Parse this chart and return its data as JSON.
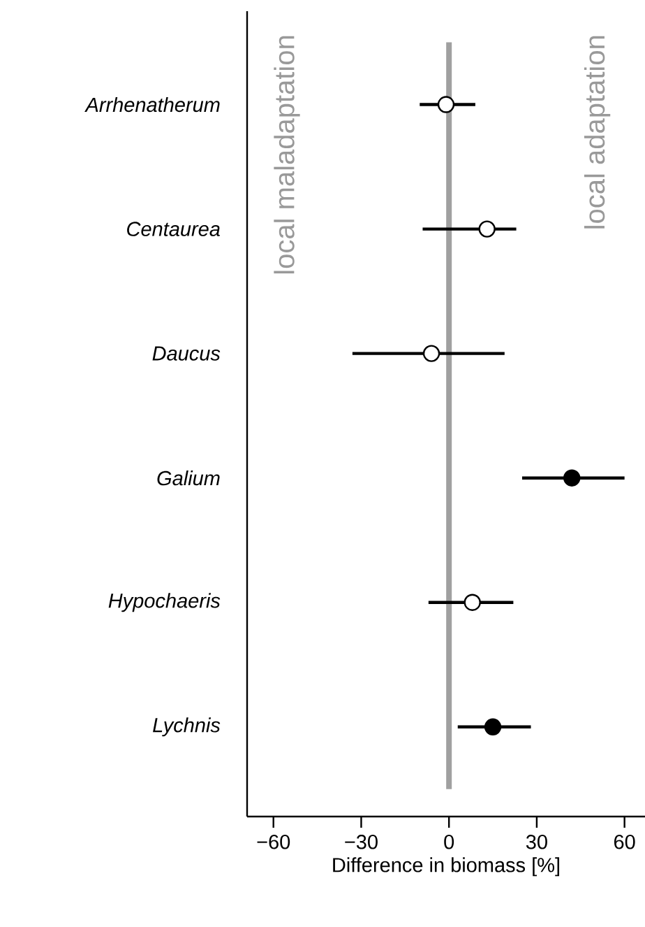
{
  "chart_data": {
    "type": "scatter",
    "orientation": "horizontal",
    "xlabel": "Difference in biomass [%]",
    "categories": [
      "Arrhenatherum",
      "Centaurea",
      "Daucus",
      "Galium",
      "Hypochaeris",
      "Lychnis"
    ],
    "series": [
      {
        "color": "#ffffff",
        "values": [
          -1,
          13,
          -6,
          null,
          8,
          null
        ],
        "errors": [
          [
            -10,
            9
          ],
          [
            -9,
            23
          ],
          [
            -33,
            19
          ],
          null,
          [
            -7,
            22
          ],
          null
        ]
      },
      {
        "color": "#000000",
        "values": [
          null,
          null,
          null,
          42,
          null,
          15
        ],
        "errors": [
          null,
          null,
          null,
          [
            25,
            60
          ],
          null,
          [
            3,
            28
          ]
        ]
      }
    ],
    "xlim": [
      -69,
      67
    ],
    "xticks": [
      {
        "value": -60,
        "label": "−60"
      },
      {
        "value": -30,
        "label": "−30"
      },
      0,
      30,
      60
    ],
    "ref_lines": [
      {
        "axis": "x",
        "value": 0,
        "color": "#a0a0a0"
      }
    ],
    "annotations": [
      "local maladaptation",
      "local adaptation"
    ],
    "marker": "circle"
  }
}
